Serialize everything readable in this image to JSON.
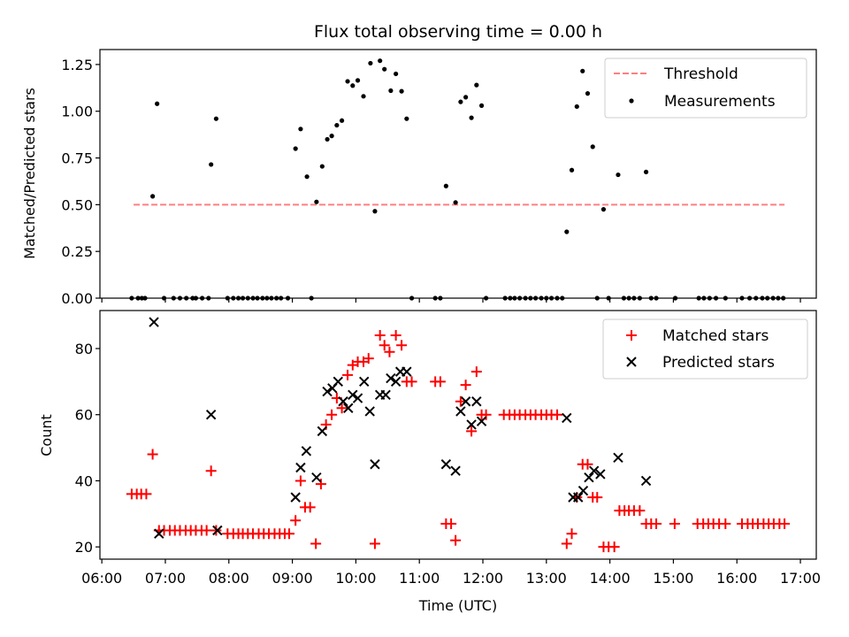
{
  "title": "Flux total observing time = 0.00 h",
  "top_panel": {
    "ylabel": "Matched/Predicted stars",
    "yticks": [
      "0.00",
      "0.25",
      "0.50",
      "0.75",
      "1.00",
      "1.25"
    ],
    "legend": {
      "threshold": "Threshold",
      "measurements": "Measurements"
    }
  },
  "bottom_panel": {
    "ylabel": "Count",
    "xlabel": "Time (UTC)",
    "yticks": [
      "20",
      "40",
      "60",
      "80"
    ],
    "xticks": [
      "06:00",
      "07:00",
      "08:00",
      "09:00",
      "10:00",
      "11:00",
      "12:00",
      "13:00",
      "14:00",
      "15:00",
      "16:00",
      "17:00"
    ],
    "legend": {
      "matched": "Matched stars",
      "predicted": "Predicted stars"
    }
  },
  "chart_data": [
    {
      "type": "scatter",
      "title": "Flux total observing time = 0.00 h",
      "xlabel": "",
      "ylabel": "Matched/Predicted stars",
      "x_unit": "hours UTC",
      "xlim": [
        5.97,
        17.25
      ],
      "ylim": [
        0.0,
        1.33
      ],
      "grid": false,
      "legend_position": "top-right",
      "colors": {
        "threshold": "#ff7f7f",
        "measurements": "#000000"
      },
      "threshold": {
        "name": "Threshold",
        "y": 0.5,
        "x": [
          6.5,
          16.75
        ]
      },
      "series": [
        {
          "name": "Measurements",
          "points": [
            [
              6.47,
              0
            ],
            [
              6.57,
              0
            ],
            [
              6.63,
              0
            ],
            [
              6.68,
              0
            ],
            [
              6.8,
              0.545
            ],
            [
              6.87,
              1.04
            ],
            [
              6.98,
              0
            ],
            [
              7.13,
              0
            ],
            [
              7.23,
              0
            ],
            [
              7.33,
              0
            ],
            [
              7.43,
              0
            ],
            [
              7.48,
              0
            ],
            [
              7.58,
              0
            ],
            [
              7.68,
              0
            ],
            [
              7.72,
              0.715
            ],
            [
              7.8,
              0.96
            ],
            [
              7.98,
              0
            ],
            [
              8.07,
              0
            ],
            [
              8.15,
              0
            ],
            [
              8.22,
              0
            ],
            [
              8.3,
              0
            ],
            [
              8.38,
              0
            ],
            [
              8.45,
              0
            ],
            [
              8.53,
              0
            ],
            [
              8.6,
              0
            ],
            [
              8.67,
              0
            ],
            [
              8.75,
              0
            ],
            [
              8.82,
              0
            ],
            [
              8.93,
              0
            ],
            [
              9.05,
              0.8
            ],
            [
              9.13,
              0.905
            ],
            [
              9.23,
              0.65
            ],
            [
              9.3,
              0
            ],
            [
              9.38,
              0.515
            ],
            [
              9.47,
              0.705
            ],
            [
              9.55,
              0.85
            ],
            [
              9.62,
              0.868
            ],
            [
              9.7,
              0.925
            ],
            [
              9.78,
              0.95
            ],
            [
              9.87,
              1.16
            ],
            [
              9.95,
              1.137
            ],
            [
              10.03,
              1.165
            ],
            [
              10.12,
              1.08
            ],
            [
              10.23,
              1.257
            ],
            [
              10.3,
              0.465
            ],
            [
              10.38,
              1.27
            ],
            [
              10.45,
              1.225
            ],
            [
              10.55,
              1.11
            ],
            [
              10.63,
              1.2
            ],
            [
              10.72,
              1.107
            ],
            [
              10.8,
              0.96
            ],
            [
              10.88,
              0
            ],
            [
              11.25,
              0
            ],
            [
              11.33,
              0
            ],
            [
              11.42,
              0.6
            ],
            [
              11.57,
              0.512
            ],
            [
              11.65,
              1.05
            ],
            [
              11.73,
              1.075
            ],
            [
              11.82,
              0.965
            ],
            [
              11.9,
              1.14
            ],
            [
              11.98,
              1.03
            ],
            [
              12.05,
              0
            ],
            [
              12.35,
              0
            ],
            [
              12.43,
              0
            ],
            [
              12.5,
              0
            ],
            [
              12.58,
              0
            ],
            [
              12.67,
              0
            ],
            [
              12.75,
              0
            ],
            [
              12.83,
              0
            ],
            [
              12.92,
              0
            ],
            [
              13.0,
              0
            ],
            [
              13.08,
              0
            ],
            [
              13.17,
              0
            ],
            [
              13.25,
              0
            ],
            [
              13.32,
              0.355
            ],
            [
              13.4,
              0.685
            ],
            [
              13.48,
              1.025
            ],
            [
              13.57,
              1.215
            ],
            [
              13.65,
              1.095
            ],
            [
              13.73,
              0.81
            ],
            [
              13.8,
              0
            ],
            [
              13.9,
              0.475
            ],
            [
              13.98,
              0
            ],
            [
              14.13,
              0.66
            ],
            [
              14.22,
              0
            ],
            [
              14.3,
              0
            ],
            [
              14.38,
              0
            ],
            [
              14.47,
              0
            ],
            [
              14.57,
              0.675
            ],
            [
              14.65,
              0
            ],
            [
              14.73,
              0
            ],
            [
              15.03,
              0
            ],
            [
              15.4,
              0
            ],
            [
              15.48,
              0
            ],
            [
              15.57,
              0
            ],
            [
              15.67,
              0
            ],
            [
              15.82,
              0
            ],
            [
              16.08,
              0
            ],
            [
              16.2,
              0
            ],
            [
              16.3,
              0
            ],
            [
              16.4,
              0
            ],
            [
              16.48,
              0
            ],
            [
              16.57,
              0
            ],
            [
              16.65,
              0
            ],
            [
              16.73,
              0
            ]
          ]
        }
      ]
    },
    {
      "type": "scatter",
      "title": "",
      "xlabel": "Time (UTC)",
      "ylabel": "Count",
      "x_unit": "hours UTC",
      "xlim": [
        5.97,
        17.25
      ],
      "ylim": [
        16.3,
        91.5
      ],
      "grid": false,
      "legend_position": "top-right",
      "colors": {
        "matched": "#ff0000",
        "predicted": "#000000"
      },
      "series": [
        {
          "name": "Matched stars",
          "marker": "plus",
          "points": [
            [
              6.47,
              36
            ],
            [
              6.55,
              36
            ],
            [
              6.62,
              36
            ],
            [
              6.7,
              36
            ],
            [
              6.8,
              48
            ],
            [
              6.9,
              25
            ],
            [
              6.98,
              25
            ],
            [
              7.07,
              25
            ],
            [
              7.15,
              25
            ],
            [
              7.23,
              25
            ],
            [
              7.32,
              25
            ],
            [
              7.4,
              25
            ],
            [
              7.48,
              25
            ],
            [
              7.57,
              25
            ],
            [
              7.65,
              25
            ],
            [
              7.72,
              43
            ],
            [
              7.8,
              25
            ],
            [
              7.98,
              24
            ],
            [
              8.07,
              24
            ],
            [
              8.15,
              24
            ],
            [
              8.22,
              24
            ],
            [
              8.3,
              24
            ],
            [
              8.38,
              24
            ],
            [
              8.47,
              24
            ],
            [
              8.55,
              24
            ],
            [
              8.63,
              24
            ],
            [
              8.72,
              24
            ],
            [
              8.8,
              24
            ],
            [
              8.88,
              24
            ],
            [
              8.95,
              24
            ],
            [
              9.05,
              28
            ],
            [
              9.13,
              40
            ],
            [
              9.2,
              32
            ],
            [
              9.28,
              32
            ],
            [
              9.37,
              21
            ],
            [
              9.45,
              39
            ],
            [
              9.53,
              57
            ],
            [
              9.62,
              60
            ],
            [
              9.7,
              65
            ],
            [
              9.78,
              62
            ],
            [
              9.87,
              72
            ],
            [
              9.95,
              75
            ],
            [
              10.03,
              76
            ],
            [
              10.12,
              76
            ],
            [
              10.2,
              77
            ],
            [
              10.3,
              21
            ],
            [
              10.38,
              84
            ],
            [
              10.45,
              81
            ],
            [
              10.53,
              79
            ],
            [
              10.63,
              84
            ],
            [
              10.72,
              81
            ],
            [
              10.8,
              70
            ],
            [
              10.88,
              70
            ],
            [
              11.25,
              70
            ],
            [
              11.33,
              70
            ],
            [
              11.42,
              27
            ],
            [
              11.5,
              27
            ],
            [
              11.57,
              22
            ],
            [
              11.65,
              64
            ],
            [
              11.73,
              69
            ],
            [
              11.82,
              55
            ],
            [
              11.9,
              73
            ],
            [
              11.98,
              60
            ],
            [
              12.05,
              60
            ],
            [
              12.33,
              60
            ],
            [
              12.42,
              60
            ],
            [
              12.5,
              60
            ],
            [
              12.58,
              60
            ],
            [
              12.67,
              60
            ],
            [
              12.75,
              60
            ],
            [
              12.83,
              60
            ],
            [
              12.92,
              60
            ],
            [
              13.0,
              60
            ],
            [
              13.08,
              60
            ],
            [
              13.17,
              60
            ],
            [
              13.32,
              21
            ],
            [
              13.4,
              24
            ],
            [
              13.48,
              35
            ],
            [
              13.57,
              45
            ],
            [
              13.65,
              45
            ],
            [
              13.73,
              35
            ],
            [
              13.8,
              35
            ],
            [
              13.9,
              20
            ],
            [
              13.98,
              20
            ],
            [
              14.07,
              20
            ],
            [
              14.15,
              31
            ],
            [
              14.23,
              31
            ],
            [
              14.3,
              31
            ],
            [
              14.38,
              31
            ],
            [
              14.47,
              31
            ],
            [
              14.57,
              27
            ],
            [
              14.65,
              27
            ],
            [
              14.73,
              27
            ],
            [
              15.02,
              27
            ],
            [
              15.38,
              27
            ],
            [
              15.47,
              27
            ],
            [
              15.55,
              27
            ],
            [
              15.63,
              27
            ],
            [
              15.72,
              27
            ],
            [
              15.82,
              27
            ],
            [
              16.08,
              27
            ],
            [
              16.17,
              27
            ],
            [
              16.25,
              27
            ],
            [
              16.33,
              27
            ],
            [
              16.42,
              27
            ],
            [
              16.5,
              27
            ],
            [
              16.58,
              27
            ],
            [
              16.67,
              27
            ],
            [
              16.75,
              27
            ]
          ]
        },
        {
          "name": "Predicted stars",
          "marker": "x",
          "points": [
            [
              6.82,
              88
            ],
            [
              6.9,
              24
            ],
            [
              7.72,
              60
            ],
            [
              7.82,
              25
            ],
            [
              9.05,
              35
            ],
            [
              9.13,
              44
            ],
            [
              9.22,
              49
            ],
            [
              9.38,
              41
            ],
            [
              9.47,
              55
            ],
            [
              9.55,
              67
            ],
            [
              9.63,
              68
            ],
            [
              9.72,
              70
            ],
            [
              9.8,
              64
            ],
            [
              9.88,
              62
            ],
            [
              9.95,
              66
            ],
            [
              10.03,
              65
            ],
            [
              10.13,
              70
            ],
            [
              10.22,
              61
            ],
            [
              10.3,
              45
            ],
            [
              10.38,
              66
            ],
            [
              10.47,
              66
            ],
            [
              10.55,
              71
            ],
            [
              10.63,
              70
            ],
            [
              10.7,
              73
            ],
            [
              10.8,
              73
            ],
            [
              11.42,
              45
            ],
            [
              11.57,
              43
            ],
            [
              11.65,
              61
            ],
            [
              11.73,
              64
            ],
            [
              11.82,
              57
            ],
            [
              11.9,
              64
            ],
            [
              11.98,
              58
            ],
            [
              13.32,
              59
            ],
            [
              13.42,
              35
            ],
            [
              13.5,
              35
            ],
            [
              13.58,
              37
            ],
            [
              13.67,
              41
            ],
            [
              13.75,
              43
            ],
            [
              13.85,
              42
            ],
            [
              14.13,
              47
            ],
            [
              14.57,
              40
            ]
          ]
        }
      ]
    }
  ]
}
